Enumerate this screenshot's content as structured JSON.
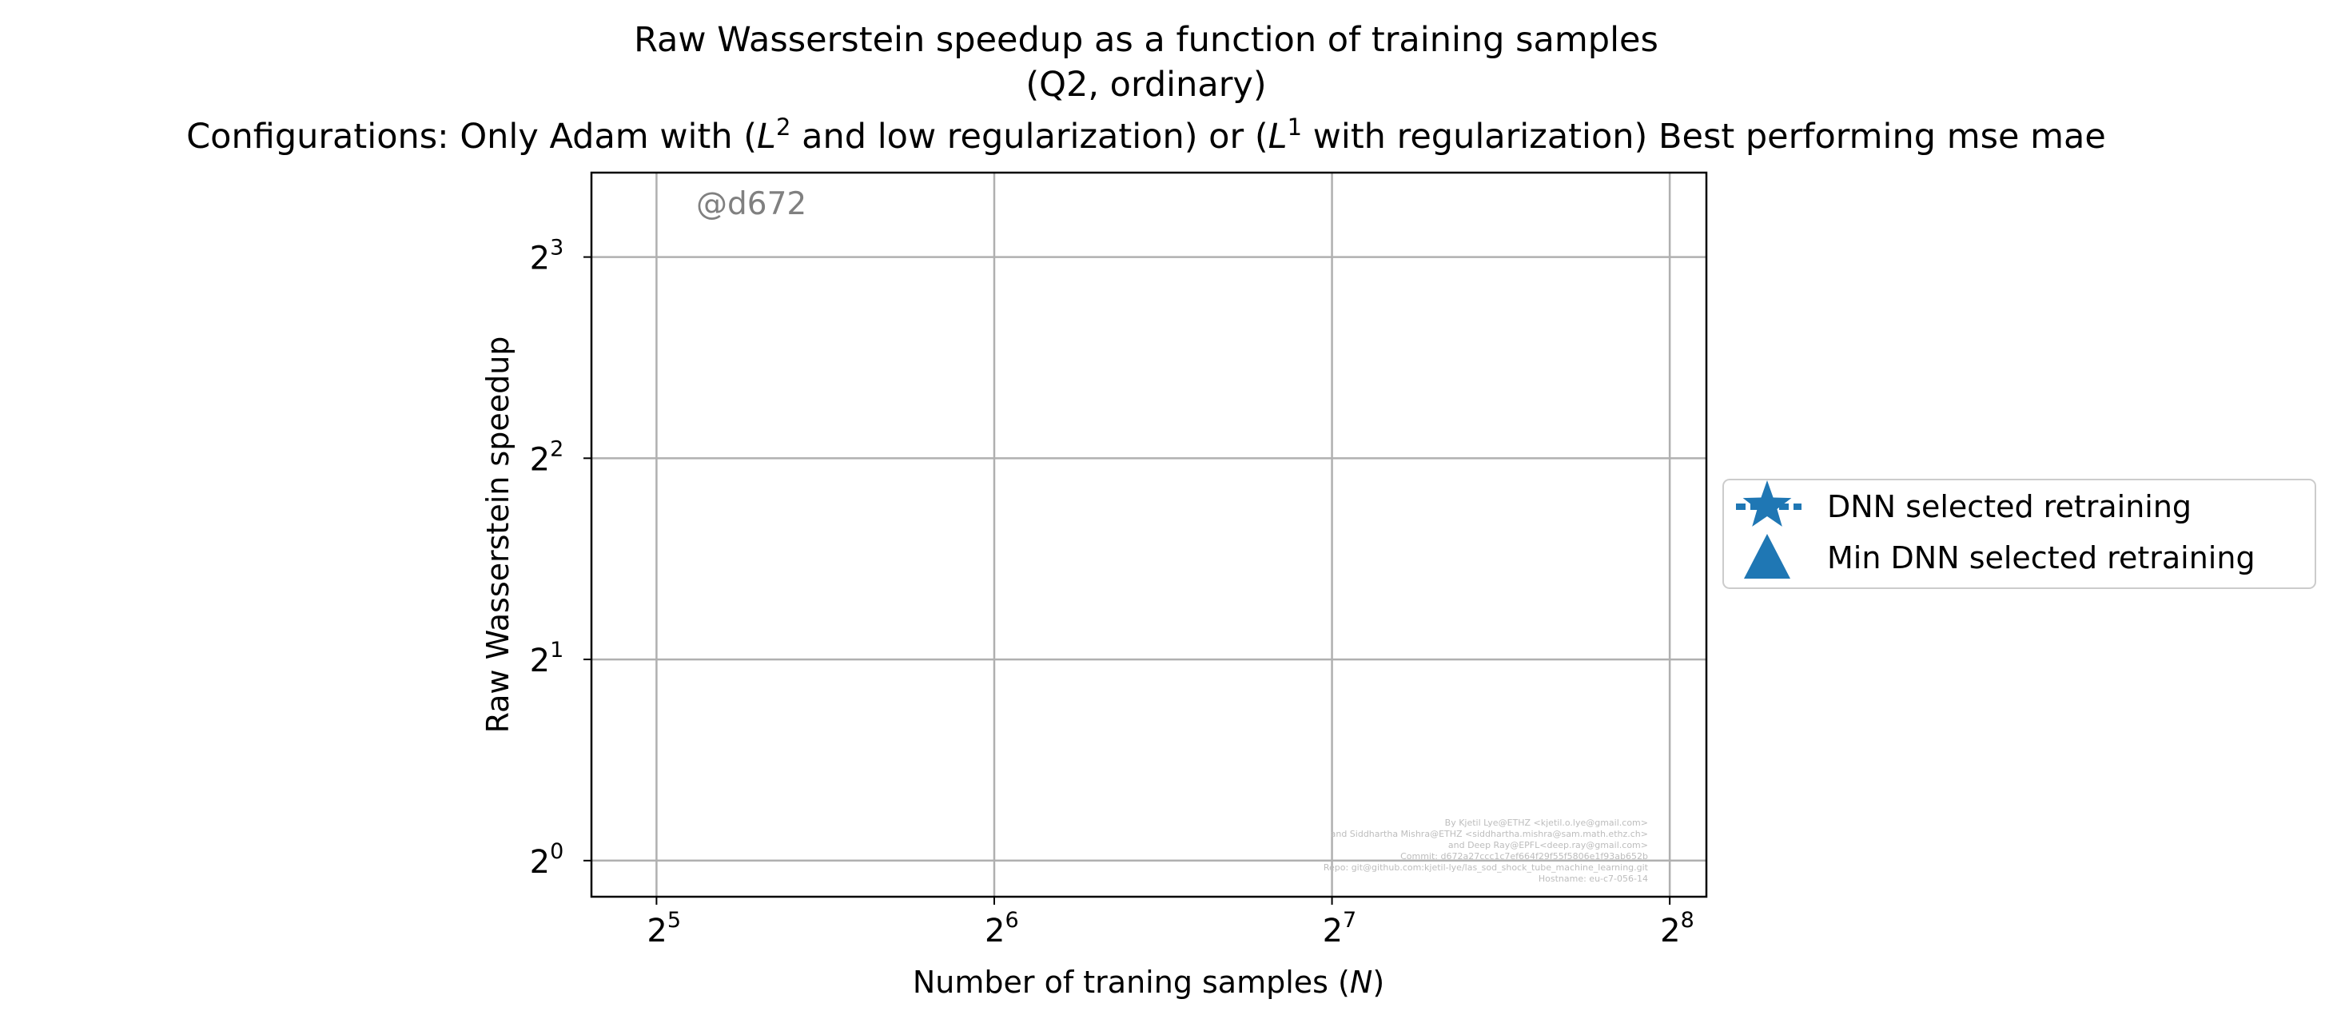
{
  "chart_data": {
    "type": "scatter",
    "title_lines": [
      "Raw Wasserstein speedup as a function of training samples",
      "(Q2, ordinary)",
      {
        "t1": "Configurations: Only Adam with (",
        "m1": "L",
        "e1": "2",
        "t2": " and low regularization) or (",
        "m2": "L",
        "e2": "1",
        "t3": " with regularization) Best performing mse mae"
      }
    ],
    "xlabel": {
      "text": "Number of traning samples (",
      "math": "N",
      "close": ")"
    },
    "ylabel": "Raw Wasserstein speedup",
    "x_scale": "log2",
    "y_scale": "log2",
    "xlim": [
      28,
      276
    ],
    "ylim": [
      0.883,
      10.7
    ],
    "x_ticks": [
      {
        "base": "2",
        "exp": "5",
        "value": 32
      },
      {
        "base": "2",
        "exp": "6",
        "value": 64
      },
      {
        "base": "2",
        "exp": "7",
        "value": 128
      },
      {
        "base": "2",
        "exp": "8",
        "value": 256
      }
    ],
    "y_ticks": [
      {
        "base": "2",
        "exp": "0",
        "value": 1
      },
      {
        "base": "2",
        "exp": "1",
        "value": 2
      },
      {
        "base": "2",
        "exp": "2",
        "value": 4
      },
      {
        "base": "2",
        "exp": "3",
        "value": 8
      }
    ],
    "grid": true,
    "legend_position": "center-left, outside right of axes",
    "series": [
      {
        "name": "DNN selected retraining",
        "marker": "star",
        "color": "#1f77b4",
        "x": [],
        "y": []
      },
      {
        "name": "Min DNN selected retraining",
        "marker": "triangle",
        "color": "#1f77b4",
        "x": [],
        "y": []
      }
    ],
    "watermark": "@d672",
    "credits": [
      "By Kjetil Lye@ETHZ <kjetil.o.lye@gmail.com>",
      "and Siddhartha Mishra@ETHZ <siddhartha.mishra@sam.math.ethz.ch>",
      "and Deep Ray@EPFL<deep.ray@gmail.com>",
      "Commit: d672a27ccc1c7ef664f29f55f5806e1f93ab652b",
      "Repo: git@github.com:kjetil-lye/las_sod_shock_tube_machine_learning.git",
      "Hostname: eu-c7-056-14"
    ]
  }
}
